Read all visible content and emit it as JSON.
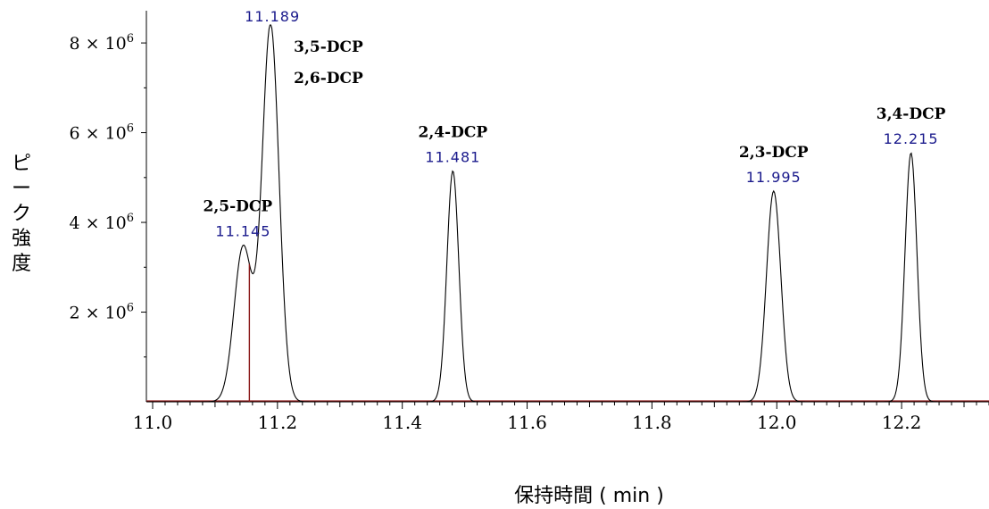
{
  "chart_data": {
    "type": "line",
    "title": "",
    "xlabel": "保持時間 ( min )",
    "ylabel": "ピーク強度",
    "xlim": [
      10.99,
      12.34
    ],
    "ylim": [
      0,
      8.4
    ],
    "x_ticks": [
      "11.0",
      "11.2",
      "11.4",
      "11.6",
      "11.8",
      "12.0",
      "12.2"
    ],
    "x_tick_values": [
      11.0,
      11.2,
      11.4,
      11.6,
      11.8,
      12.0,
      12.2
    ],
    "y_ticks": [
      {
        "mantissa": "2",
        "exp": "6",
        "value": 2
      },
      {
        "mantissa": "4",
        "exp": "6",
        "value": 4
      },
      {
        "mantissa": "6",
        "exp": "6",
        "value": 6
      },
      {
        "mantissa": "8",
        "exp": "6",
        "value": 8
      }
    ],
    "y_unit_note": "× 10^6",
    "grid": false,
    "trace_color": "#000000",
    "baseline_color": "#8b1a1a",
    "rt_label_color": "#1a1a8c",
    "peaks": [
      {
        "rt": 11.145,
        "rt_label": "11.145",
        "height": 3.45,
        "sigma": 0.0145,
        "names": [
          "2,5-DCP"
        ]
      },
      {
        "rt": 11.189,
        "rt_label": "11.189",
        "height": 8.4,
        "sigma": 0.0135,
        "names": [
          "3,5-DCP",
          "2,6-DCP"
        ]
      },
      {
        "rt": 11.481,
        "rt_label": "11.481",
        "height": 5.15,
        "sigma": 0.0095,
        "names": [
          "2,4-DCP"
        ]
      },
      {
        "rt": 11.995,
        "rt_label": "11.995",
        "height": 4.7,
        "sigma": 0.0115,
        "names": [
          "2,3-DCP"
        ]
      },
      {
        "rt": 12.215,
        "rt_label": "12.215",
        "height": 5.55,
        "sigma": 0.0095,
        "names": [
          "3,4-DCP"
        ]
      }
    ],
    "integration_marker_x": 11.155
  }
}
